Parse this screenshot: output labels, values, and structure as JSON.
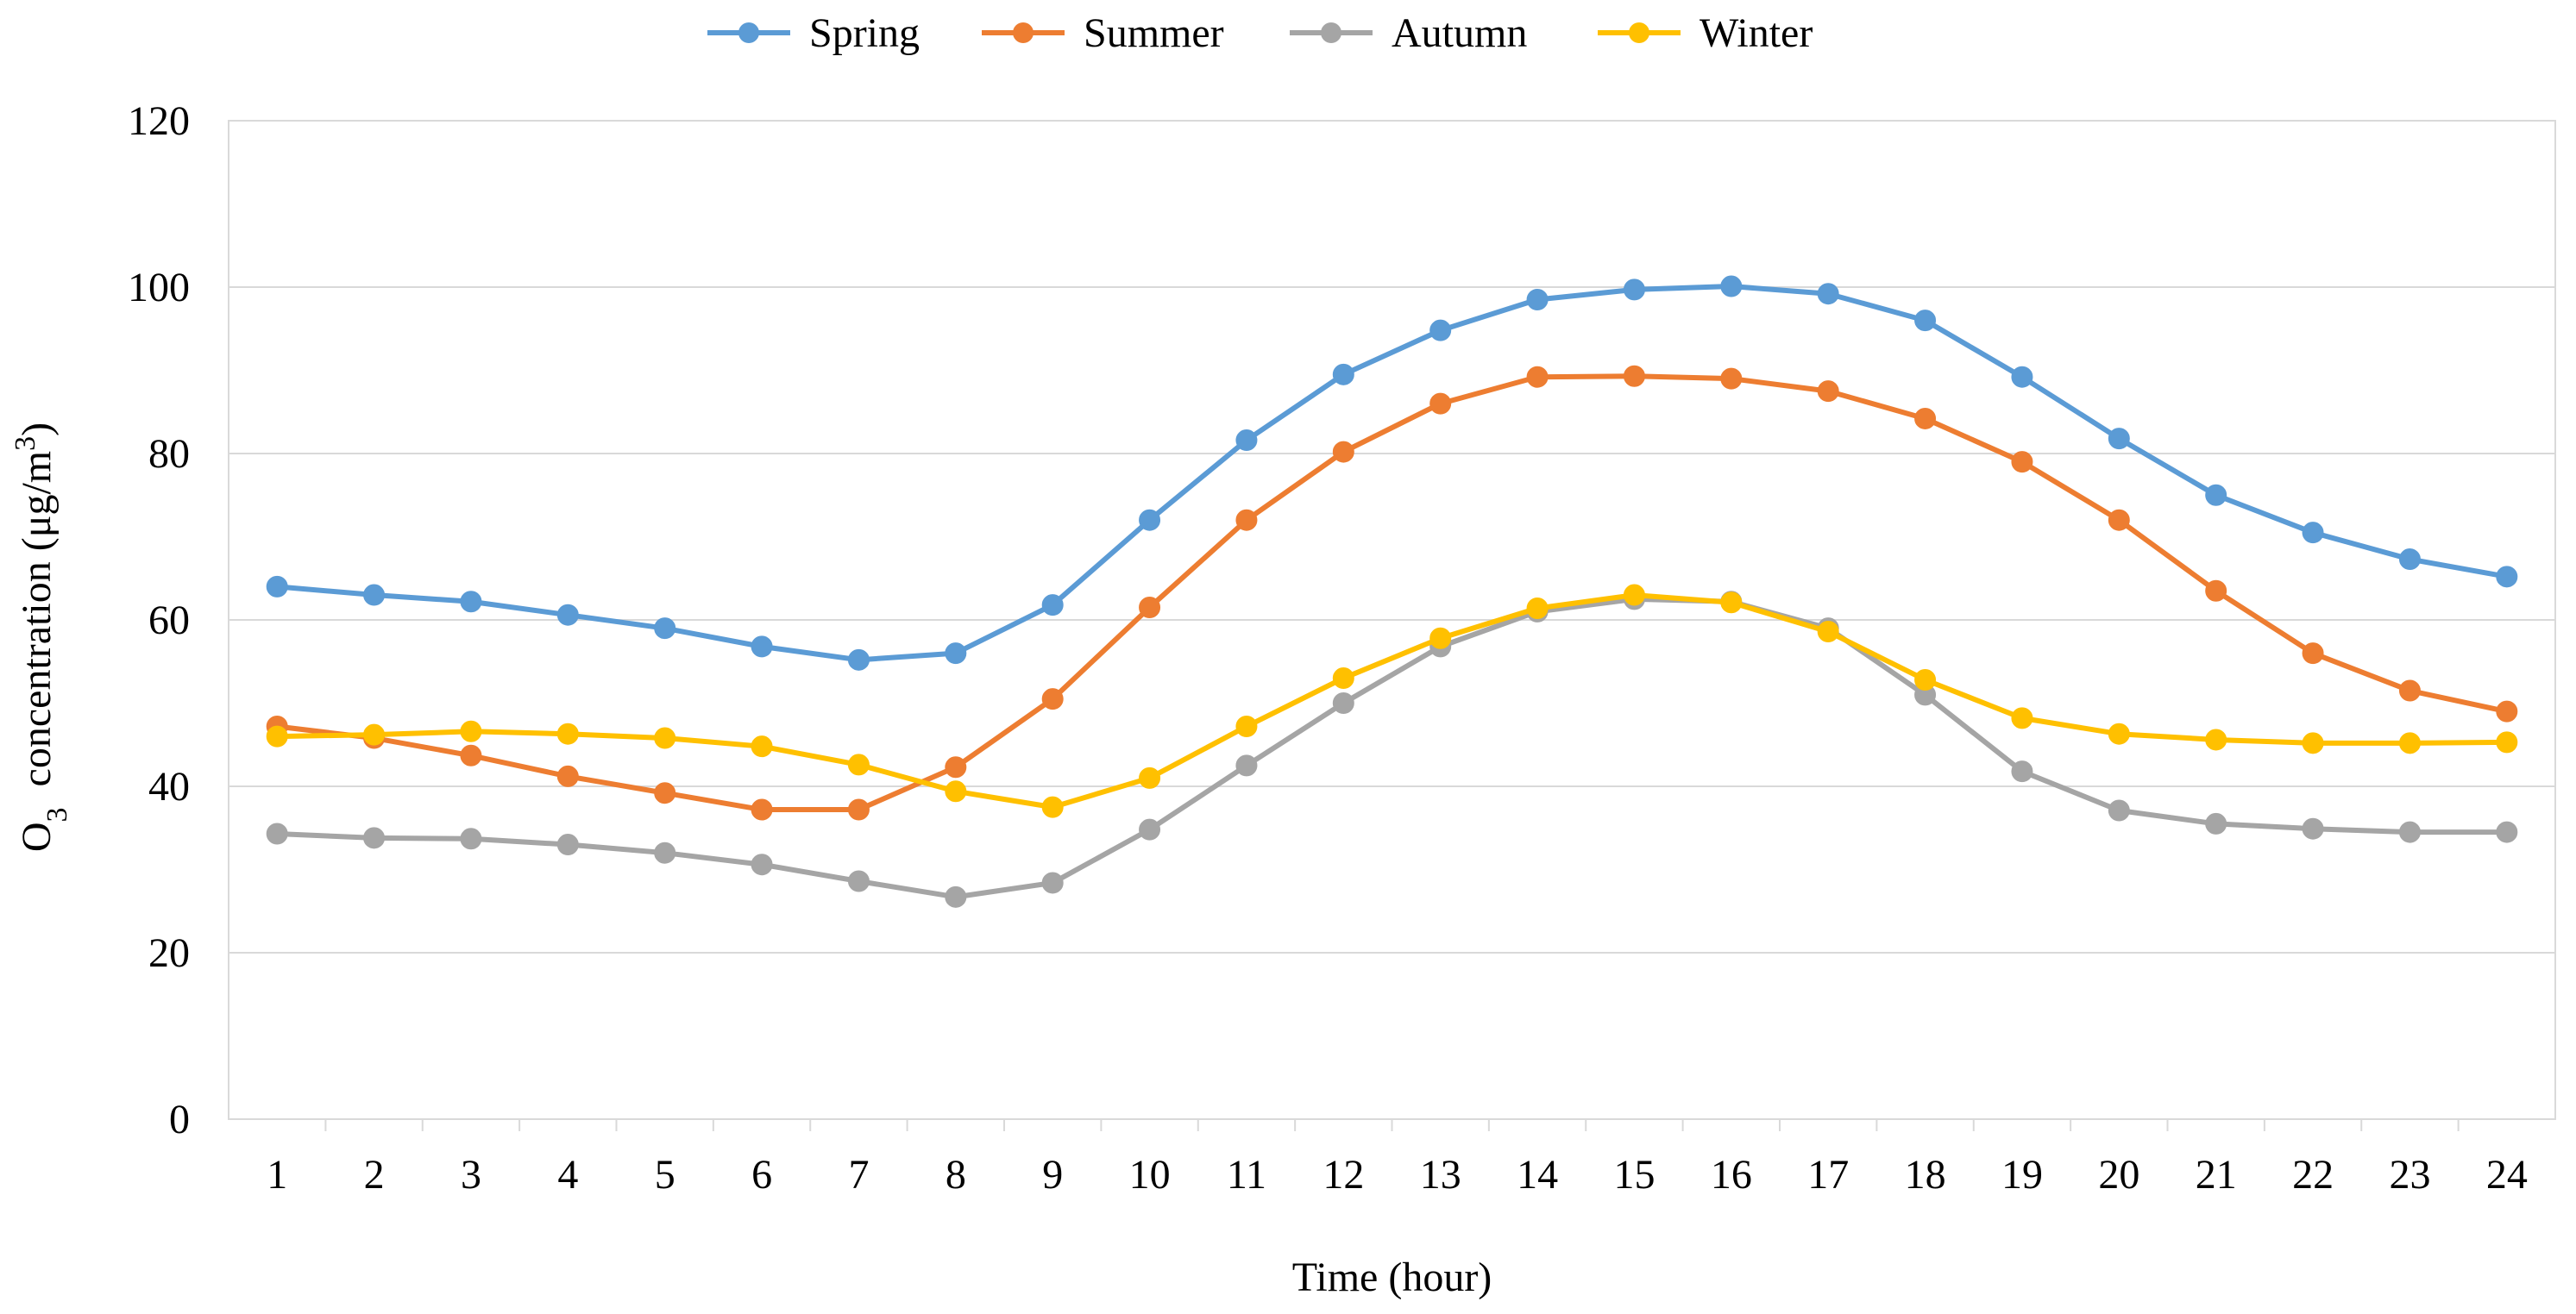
{
  "chart_data": {
    "type": "line",
    "title": "",
    "xlabel": "Time (hour)",
    "ylabel": {
      "main": "O",
      "main_sub": "3",
      "rest": "  concentration (μg/m",
      "rest_sup": "3",
      "close": ")"
    },
    "ylim": [
      0,
      120
    ],
    "yticks": [
      "0",
      "20",
      "40",
      "60",
      "80",
      "100",
      "120"
    ],
    "ytick_values": [
      0,
      20,
      40,
      60,
      80,
      100,
      120
    ],
    "categories": [
      "1",
      "2",
      "3",
      "4",
      "5",
      "6",
      "7",
      "8",
      "9",
      "10",
      "11",
      "12",
      "13",
      "14",
      "15",
      "16",
      "17",
      "18",
      "19",
      "20",
      "21",
      "22",
      "23",
      "24"
    ],
    "grid": true,
    "legend_position": "top",
    "series": [
      {
        "name": "Spring",
        "color": "#5B9BD5",
        "values": [
          64.0,
          63.0,
          62.2,
          60.6,
          59.0,
          56.8,
          55.2,
          56.0,
          61.8,
          72.0,
          81.6,
          89.5,
          94.8,
          98.5,
          99.7,
          100.1,
          99.2,
          96.0,
          89.2,
          81.8,
          75.0,
          70.5,
          67.3,
          65.2
        ]
      },
      {
        "name": "Summer",
        "color": "#ED7D31",
        "values": [
          47.2,
          45.8,
          43.7,
          41.2,
          39.2,
          37.2,
          37.2,
          42.3,
          50.5,
          61.5,
          72.0,
          80.2,
          86.0,
          89.2,
          89.3,
          89.0,
          87.5,
          84.2,
          79.0,
          72.0,
          63.5,
          56.0,
          51.5,
          49.0
        ]
      },
      {
        "name": "Autumn",
        "color": "#A5A5A5",
        "values": [
          34.3,
          33.8,
          33.7,
          33.0,
          32.0,
          30.6,
          28.6,
          26.7,
          28.4,
          34.8,
          42.5,
          50.0,
          56.8,
          61.0,
          62.5,
          62.2,
          59.0,
          51.0,
          41.8,
          37.1,
          35.5,
          34.9,
          34.5,
          34.5
        ]
      },
      {
        "name": "Winter",
        "color": "#FFC000",
        "values": [
          46.0,
          46.2,
          46.6,
          46.3,
          45.8,
          44.8,
          42.6,
          39.4,
          37.5,
          41.0,
          47.2,
          53.0,
          57.8,
          61.4,
          63.0,
          62.1,
          58.6,
          52.8,
          48.2,
          46.3,
          45.6,
          45.2,
          45.2,
          45.3
        ]
      }
    ]
  }
}
